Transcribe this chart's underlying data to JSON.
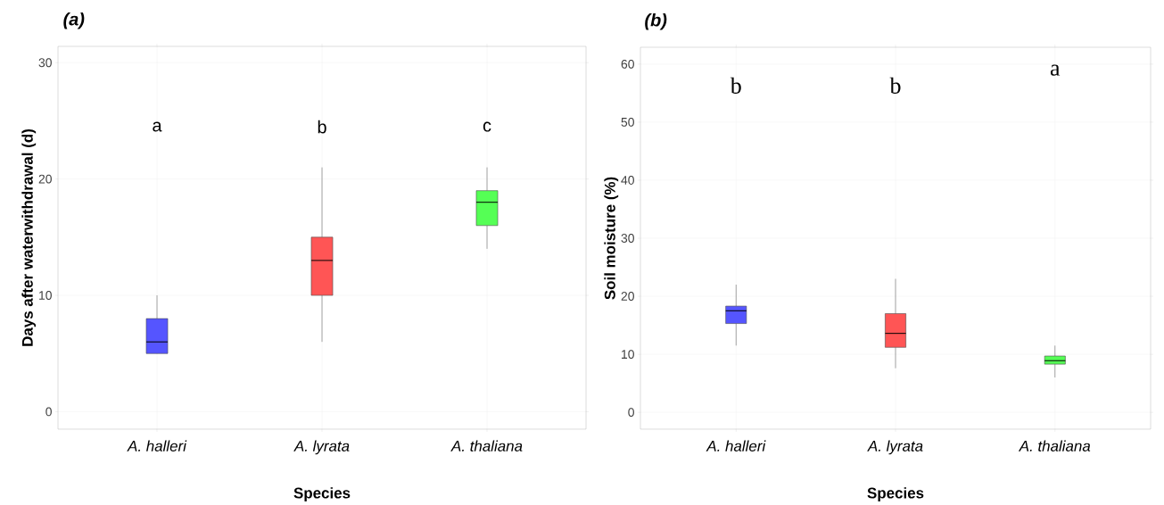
{
  "chart_data": [
    {
      "type": "box",
      "title": "(a)",
      "xlabel": "Species",
      "ylabel": "Days after waterwithdrawal (d)",
      "categories": [
        "A. halleri",
        "A. lyrata",
        "A. thaliana"
      ],
      "colors": [
        "#5555ff",
        "#ff5555",
        "#55ff55"
      ],
      "boxes": [
        {
          "low": 5,
          "q1": 5,
          "median": 6,
          "q3": 8,
          "high": 10
        },
        {
          "low": 6,
          "q1": 10,
          "median": 13,
          "q3": 15,
          "high": 21
        },
        {
          "low": 14,
          "q1": 16,
          "median": 18,
          "q3": 19,
          "high": 21
        }
      ],
      "ylim": [
        -1.5,
        31.4
      ],
      "yticks": [
        0,
        10,
        20,
        30
      ],
      "grid": true,
      "annotations": [
        "a",
        "b",
        "c"
      ]
    },
    {
      "type": "box",
      "title": "(b)",
      "xlabel": "Species",
      "ylabel": "Soil moisture (%)",
      "categories": [
        "A. halleri",
        "A. lyrata",
        "A. thaliana"
      ],
      "colors": [
        "#5555ff",
        "#ff5555",
        "#55ff55"
      ],
      "boxes": [
        {
          "low": 11.5,
          "q1": 15.3,
          "median": 17.5,
          "q3": 18.3,
          "high": 22
        },
        {
          "low": 7.6,
          "q1": 11.2,
          "median": 13.6,
          "q3": 17,
          "high": 23
        },
        {
          "low": 6,
          "q1": 8.3,
          "median": 8.9,
          "q3": 9.7,
          "high": 11.5
        }
      ],
      "ylim": [
        -2.9,
        62.9
      ],
      "yticks": [
        0,
        10,
        20,
        30,
        40,
        50,
        60
      ],
      "grid": true,
      "annotations": [
        "b",
        "b",
        "a"
      ]
    }
  ]
}
